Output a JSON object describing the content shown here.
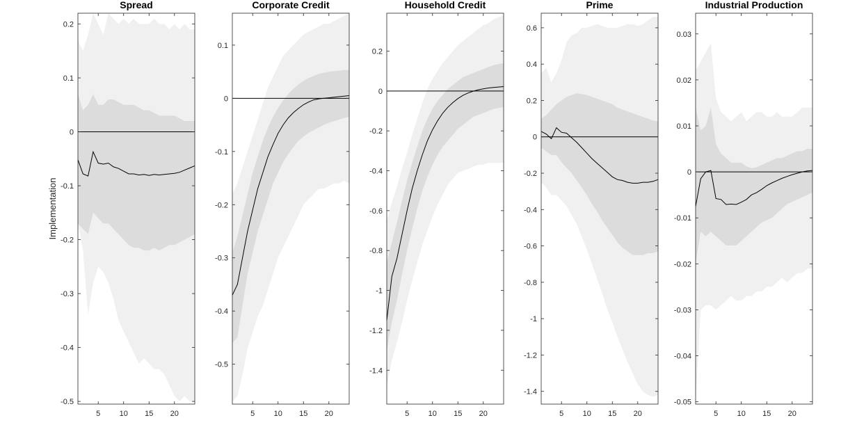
{
  "figure": {
    "ylabel": "Implementation"
  },
  "chart_data": [
    {
      "type": "line",
      "title": "Spread",
      "x": [
        1,
        2,
        3,
        4,
        5,
        6,
        7,
        8,
        9,
        10,
        11,
        12,
        13,
        14,
        15,
        16,
        17,
        18,
        19,
        20,
        21,
        22,
        23,
        24
      ],
      "xticks": [
        5,
        10,
        15,
        20
      ],
      "xlim": [
        1,
        24
      ],
      "yticks": [
        0.2,
        0.1,
        0,
        -0.1,
        -0.2,
        -0.3,
        -0.4,
        -0.5
      ],
      "ytick_labels": [
        "0.2",
        "0.1",
        "0",
        "-0.1",
        "-0.2",
        "-0.3",
        "-0.4",
        "-0.5"
      ],
      "ylim": [
        -0.505,
        0.22
      ],
      "zero_line": 0,
      "series": [
        {
          "values": [
            -0.052,
            -0.078,
            -0.082,
            -0.037,
            -0.058,
            -0.06,
            -0.058,
            -0.065,
            -0.068,
            -0.073,
            -0.078,
            -0.078,
            -0.08,
            -0.079,
            -0.081,
            -0.079,
            -0.08,
            -0.079,
            -0.078,
            -0.077,
            -0.075,
            -0.071,
            -0.067,
            -0.063
          ]
        }
      ],
      "bands": [
        {
          "level": "outer",
          "upper": [
            0.17,
            0.15,
            0.18,
            0.22,
            0.2,
            0.18,
            0.22,
            0.21,
            0.2,
            0.21,
            0.2,
            0.21,
            0.2,
            0.2,
            0.2,
            0.21,
            0.2,
            0.2,
            0.19,
            0.2,
            0.19,
            0.2,
            0.19,
            0.19
          ],
          "lower": [
            -0.17,
            -0.22,
            -0.34,
            -0.28,
            -0.25,
            -0.26,
            -0.28,
            -0.31,
            -0.35,
            -0.37,
            -0.39,
            -0.41,
            -0.43,
            -0.42,
            -0.43,
            -0.44,
            -0.44,
            -0.45,
            -0.47,
            -0.49,
            -0.5,
            -0.49,
            -0.5,
            -0.5
          ]
        },
        {
          "level": "inner",
          "upper": [
            0.07,
            0.04,
            0.05,
            0.07,
            0.05,
            0.05,
            0.06,
            0.06,
            0.055,
            0.05,
            0.05,
            0.05,
            0.045,
            0.04,
            0.04,
            0.035,
            0.03,
            0.03,
            0.03,
            0.03,
            0.025,
            0.02,
            0.02,
            0.02
          ],
          "lower": [
            -0.17,
            -0.18,
            -0.19,
            -0.15,
            -0.16,
            -0.17,
            -0.17,
            -0.18,
            -0.19,
            -0.2,
            -0.21,
            -0.215,
            -0.215,
            -0.22,
            -0.22,
            -0.215,
            -0.22,
            -0.215,
            -0.21,
            -0.21,
            -0.205,
            -0.2,
            -0.195,
            -0.19
          ]
        }
      ]
    },
    {
      "type": "line",
      "title": "Corporate Credit",
      "x": [
        1,
        2,
        3,
        4,
        5,
        6,
        7,
        8,
        9,
        10,
        11,
        12,
        13,
        14,
        15,
        16,
        17,
        18,
        19,
        20,
        21,
        22,
        23,
        24
      ],
      "xticks": [
        5,
        10,
        15,
        20
      ],
      "xlim": [
        1,
        24
      ],
      "yticks": [
        0.1,
        0,
        -0.1,
        -0.2,
        -0.3,
        -0.4,
        -0.5
      ],
      "ytick_labels": [
        "0.1",
        "0",
        "-0.1",
        "-0.2",
        "-0.3",
        "-0.4",
        "-0.5"
      ],
      "ylim": [
        -0.575,
        0.16
      ],
      "zero_line": 0,
      "series": [
        {
          "values": [
            -0.37,
            -0.35,
            -0.3,
            -0.25,
            -0.21,
            -0.17,
            -0.14,
            -0.11,
            -0.087,
            -0.066,
            -0.05,
            -0.037,
            -0.027,
            -0.019,
            -0.012,
            -0.007,
            -0.003,
            -0.001,
            0.0,
            0.001,
            0.002,
            0.003,
            0.004,
            0.005
          ]
        }
      ],
      "bands": [
        {
          "level": "outer",
          "upper": [
            -0.18,
            -0.16,
            -0.13,
            -0.1,
            -0.07,
            -0.04,
            -0.01,
            0.02,
            0.04,
            0.06,
            0.08,
            0.09,
            0.1,
            0.11,
            0.12,
            0.125,
            0.13,
            0.135,
            0.14,
            0.14,
            0.145,
            0.15,
            0.155,
            0.16
          ],
          "lower": [
            -0.57,
            -0.56,
            -0.52,
            -0.47,
            -0.44,
            -0.41,
            -0.39,
            -0.36,
            -0.33,
            -0.3,
            -0.28,
            -0.26,
            -0.24,
            -0.22,
            -0.2,
            -0.19,
            -0.18,
            -0.17,
            -0.17,
            -0.165,
            -0.16,
            -0.16,
            -0.155,
            -0.16
          ]
        },
        {
          "level": "inner",
          "upper": [
            -0.29,
            -0.26,
            -0.22,
            -0.18,
            -0.14,
            -0.11,
            -0.08,
            -0.055,
            -0.035,
            -0.018,
            -0.004,
            0.008,
            0.018,
            0.026,
            0.033,
            0.038,
            0.042,
            0.046,
            0.048,
            0.05,
            0.051,
            0.052,
            0.053,
            0.053
          ],
          "lower": [
            -0.46,
            -0.45,
            -0.39,
            -0.33,
            -0.29,
            -0.25,
            -0.22,
            -0.19,
            -0.16,
            -0.14,
            -0.12,
            -0.105,
            -0.092,
            -0.08,
            -0.072,
            -0.065,
            -0.06,
            -0.055,
            -0.05,
            -0.046,
            -0.043,
            -0.04,
            -0.037,
            -0.035
          ]
        }
      ]
    },
    {
      "type": "line",
      "title": "Household Credit",
      "x": [
        1,
        2,
        3,
        4,
        5,
        6,
        7,
        8,
        9,
        10,
        11,
        12,
        13,
        14,
        15,
        16,
        17,
        18,
        19,
        20,
        21,
        22,
        23,
        24
      ],
      "xticks": [
        5,
        10,
        15,
        20
      ],
      "xlim": [
        1,
        24
      ],
      "yticks": [
        0.2,
        0,
        -0.2,
        -0.4,
        -0.6,
        -0.8,
        -1,
        -1.2,
        -1.4
      ],
      "ytick_labels": [
        "0.2",
        "0",
        "-0.2",
        "-0.4",
        "-0.6",
        "-0.8",
        "-1",
        "-1.2",
        "-1.4"
      ],
      "ylim": [
        -1.57,
        0.39
      ],
      "zero_line": 0,
      "series": [
        {
          "values": [
            -1.15,
            -0.93,
            -0.84,
            -0.72,
            -0.6,
            -0.49,
            -0.4,
            -0.32,
            -0.25,
            -0.195,
            -0.15,
            -0.112,
            -0.082,
            -0.058,
            -0.038,
            -0.022,
            -0.01,
            -0.001,
            0.006,
            0.011,
            0.015,
            0.018,
            0.02,
            0.022
          ]
        }
      ],
      "bands": [
        {
          "level": "outer",
          "upper": [
            -0.65,
            -0.56,
            -0.48,
            -0.39,
            -0.31,
            -0.22,
            -0.14,
            -0.06,
            0.01,
            0.06,
            0.1,
            0.14,
            0.17,
            0.2,
            0.23,
            0.25,
            0.27,
            0.29,
            0.31,
            0.33,
            0.34,
            0.36,
            0.37,
            0.38
          ],
          "lower": [
            -1.48,
            -1.35,
            -1.26,
            -1.16,
            -1.05,
            -0.95,
            -0.86,
            -0.77,
            -0.7,
            -0.63,
            -0.57,
            -0.52,
            -0.47,
            -0.44,
            -0.41,
            -0.4,
            -0.39,
            -0.38,
            -0.37,
            -0.37,
            -0.36,
            -0.36,
            -0.36,
            -0.36
          ]
        },
        {
          "level": "inner",
          "upper": [
            -0.86,
            -0.76,
            -0.66,
            -0.55,
            -0.45,
            -0.36,
            -0.28,
            -0.2,
            -0.14,
            -0.09,
            -0.05,
            -0.02,
            0.01,
            0.03,
            0.05,
            0.07,
            0.08,
            0.09,
            0.1,
            0.11,
            0.12,
            0.13,
            0.135,
            0.14
          ]
        },
        {
          "level": "inner-lower",
          "lower": [
            -1.3,
            -1.16,
            -1.05,
            -0.92,
            -0.8,
            -0.69,
            -0.59,
            -0.5,
            -0.43,
            -0.37,
            -0.32,
            -0.28,
            -0.25,
            -0.22,
            -0.19,
            -0.17,
            -0.15,
            -0.13,
            -0.12,
            -0.11,
            -0.1,
            -0.09,
            -0.085,
            -0.08
          ]
        }
      ]
    },
    {
      "type": "line",
      "title": "Prime",
      "x": [
        1,
        2,
        3,
        4,
        5,
        6,
        7,
        8,
        9,
        10,
        11,
        12,
        13,
        14,
        15,
        16,
        17,
        18,
        19,
        20,
        21,
        22,
        23,
        24
      ],
      "xticks": [
        5,
        10,
        15,
        20
      ],
      "xlim": [
        1,
        24
      ],
      "yticks": [
        0.6,
        0.4,
        0.2,
        0,
        -0.2,
        -0.4,
        -0.6,
        -0.8,
        -1,
        -1.2,
        -1.4
      ],
      "ytick_labels": [
        "0.6",
        "0.4",
        "0.2",
        "0",
        "-0.2",
        "-0.4",
        "-0.6",
        "-0.8",
        "-1",
        "-1.2",
        "-1.4"
      ],
      "ylim": [
        -1.47,
        0.68
      ],
      "zero_line": 0,
      "series": [
        {
          "values": [
            0.03,
            0.015,
            -0.01,
            0.05,
            0.025,
            0.02,
            -0.005,
            -0.03,
            -0.06,
            -0.09,
            -0.12,
            -0.145,
            -0.17,
            -0.195,
            -0.22,
            -0.235,
            -0.24,
            -0.25,
            -0.255,
            -0.255,
            -0.25,
            -0.25,
            -0.245,
            -0.235
          ]
        }
      ],
      "bands": [
        {
          "level": "outer",
          "upper": [
            0.35,
            0.38,
            0.3,
            0.35,
            0.42,
            0.52,
            0.56,
            0.57,
            0.6,
            0.6,
            0.61,
            0.62,
            0.61,
            0.6,
            0.6,
            0.6,
            0.61,
            0.62,
            0.62,
            0.61,
            0.62,
            0.64,
            0.66,
            0.66
          ],
          "lower": [
            -0.25,
            -0.28,
            -0.32,
            -0.32,
            -0.35,
            -0.38,
            -0.43,
            -0.48,
            -0.55,
            -0.62,
            -0.7,
            -0.78,
            -0.86,
            -0.95,
            -1.02,
            -1.1,
            -1.17,
            -1.24,
            -1.3,
            -1.36,
            -1.4,
            -1.42,
            -1.43,
            -1.42
          ]
        },
        {
          "level": "inner",
          "upper": [
            0.1,
            0.12,
            0.15,
            0.18,
            0.2,
            0.22,
            0.23,
            0.24,
            0.235,
            0.23,
            0.22,
            0.21,
            0.2,
            0.19,
            0.18,
            0.16,
            0.15,
            0.14,
            0.13,
            0.12,
            0.11,
            0.1,
            0.09,
            0.085
          ],
          "lower": [
            -0.06,
            -0.08,
            -0.1,
            -0.1,
            -0.14,
            -0.17,
            -0.2,
            -0.24,
            -0.28,
            -0.32,
            -0.37,
            -0.41,
            -0.46,
            -0.5,
            -0.54,
            -0.58,
            -0.61,
            -0.63,
            -0.65,
            -0.65,
            -0.65,
            -0.64,
            -0.64,
            -0.63
          ]
        }
      ]
    },
    {
      "type": "line",
      "title": "Industrial Production",
      "x": [
        1,
        2,
        3,
        4,
        5,
        6,
        7,
        8,
        9,
        10,
        11,
        12,
        13,
        14,
        15,
        16,
        17,
        18,
        19,
        20,
        21,
        22,
        23,
        24
      ],
      "xticks": [
        5,
        10,
        15,
        20
      ],
      "xlim": [
        1,
        24
      ],
      "yticks": [
        0.03,
        0.02,
        0.01,
        0,
        -0.01,
        -0.02,
        -0.03,
        -0.04,
        -0.05
      ],
      "ytick_labels": [
        "0.03",
        "0.02",
        "0.01",
        "0",
        "-0.01",
        "-0.02",
        "-0.03",
        "-0.04",
        "-0.05"
      ],
      "ylim": [
        -0.0505,
        0.0345
      ],
      "zero_line": 0,
      "series": [
        {
          "values": [
            -0.0075,
            -0.0015,
            0.0,
            0.0003,
            -0.0058,
            -0.006,
            -0.0071,
            -0.007,
            -0.0071,
            -0.0066,
            -0.006,
            -0.005,
            -0.0045,
            -0.0038,
            -0.003,
            -0.0024,
            -0.0019,
            -0.0014,
            -0.001,
            -0.0006,
            -0.0003,
            0.0,
            0.0002,
            0.0003
          ]
        }
      ],
      "bands": [
        {
          "level": "outer",
          "upper": [
            0.022,
            0.024,
            0.026,
            0.028,
            0.016,
            0.013,
            0.012,
            0.011,
            0.012,
            0.013,
            0.011,
            0.012,
            0.013,
            0.013,
            0.012,
            0.012,
            0.013,
            0.012,
            0.012,
            0.012,
            0.013,
            0.014,
            0.014,
            0.014
          ],
          "lower": [
            -0.05,
            -0.03,
            -0.029,
            -0.029,
            -0.03,
            -0.029,
            -0.028,
            -0.027,
            -0.028,
            -0.028,
            -0.027,
            -0.027,
            -0.026,
            -0.026,
            -0.025,
            -0.025,
            -0.024,
            -0.023,
            -0.024,
            -0.023,
            -0.022,
            -0.022,
            -0.021,
            -0.021
          ]
        },
        {
          "level": "inner",
          "upper": [
            0.014,
            0.009,
            0.01,
            0.014,
            0.006,
            0.004,
            0.003,
            0.002,
            0.002,
            0.002,
            0.0012,
            0.0008,
            0.001,
            0.0015,
            0.002,
            0.0025,
            0.003,
            0.003,
            0.0035,
            0.004,
            0.0045,
            0.0045,
            0.005,
            0.005
          ],
          "lower": [
            -0.02,
            -0.013,
            -0.014,
            -0.013,
            -0.014,
            -0.015,
            -0.016,
            -0.016,
            -0.016,
            -0.015,
            -0.014,
            -0.013,
            -0.012,
            -0.011,
            -0.0105,
            -0.01,
            -0.009,
            -0.008,
            -0.007,
            -0.0065,
            -0.006,
            -0.0055,
            -0.005,
            -0.0045
          ]
        }
      ]
    }
  ]
}
